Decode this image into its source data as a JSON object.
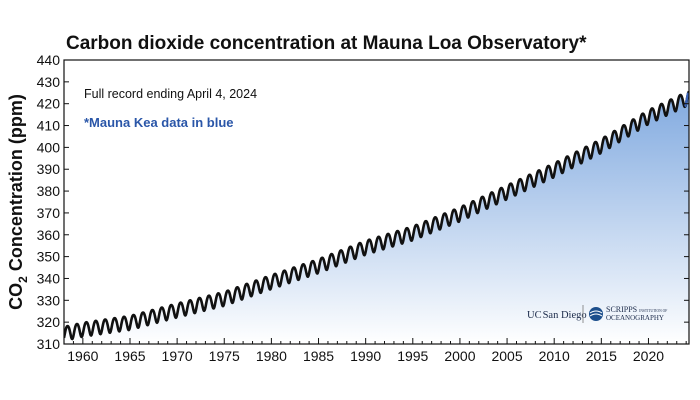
{
  "chart_data": {
    "type": "line",
    "title": "Carbon dioxide concentration at Mauna Loa Observatory*",
    "ylabel_main": "CO",
    "ylabel_sub": "2",
    "ylabel_rest": " Concentration (ppm)",
    "annotations": {
      "record": "Full record ending April 4, 2024",
      "kea_note": "*Mauna Kea data in blue"
    },
    "xlim": [
      1958,
      2024.3
    ],
    "ylim": [
      310,
      440
    ],
    "x_ticks": [
      1960,
      1965,
      1970,
      1975,
      1980,
      1985,
      1990,
      1995,
      2000,
      2005,
      2010,
      2015,
      2020
    ],
    "y_ticks": [
      310,
      320,
      330,
      340,
      350,
      360,
      370,
      380,
      390,
      400,
      410,
      420,
      430,
      440
    ],
    "trend_anchors": [
      {
        "year": 1958,
        "ppm": 315
      },
      {
        "year": 1960,
        "ppm": 316.9
      },
      {
        "year": 1965,
        "ppm": 320
      },
      {
        "year": 1970,
        "ppm": 325.7
      },
      {
        "year": 1975,
        "ppm": 331
      },
      {
        "year": 1980,
        "ppm": 338.7
      },
      {
        "year": 1985,
        "ppm": 346
      },
      {
        "year": 1990,
        "ppm": 354.4
      },
      {
        "year": 1995,
        "ppm": 361
      },
      {
        "year": 2000,
        "ppm": 369.7
      },
      {
        "year": 2005,
        "ppm": 379.8
      },
      {
        "year": 2010,
        "ppm": 389.9
      },
      {
        "year": 2015,
        "ppm": 401
      },
      {
        "year": 2020,
        "ppm": 414.2
      },
      {
        "year": 2024.3,
        "ppm": 423
      }
    ],
    "seasonal_amplitude_ppm": 3.2,
    "grid": false,
    "fill_color": "#7aa5de",
    "line_color": "#111111",
    "kea_color": "#3a63b8"
  },
  "logos": {
    "ucsd_prefix": "UC",
    "ucsd_name": "San Diego",
    "scripps_line1": "SCRIPPS",
    "scripps_small": "INSTITUTION OF",
    "scripps_line2": "OCEANOGRAPHY"
  }
}
